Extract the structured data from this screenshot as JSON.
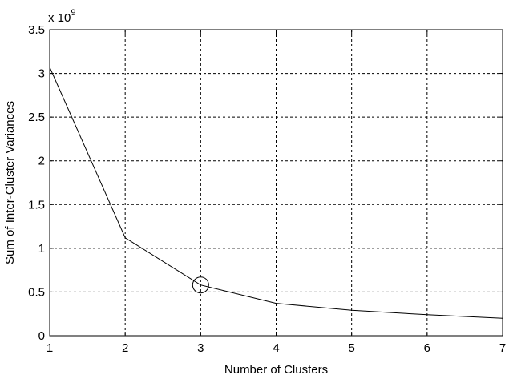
{
  "chart_data": {
    "type": "line",
    "xlabel": "Number of Clusters",
    "ylabel": "Sum of Inter-Cluster Variances",
    "y_multiplier": {
      "base": "x 10",
      "exponent": "9"
    },
    "xlim": [
      1,
      7
    ],
    "ylim": [
      0,
      3.5
    ],
    "x_ticks": [
      1,
      2,
      3,
      4,
      5,
      6,
      7
    ],
    "y_ticks": [
      0,
      0.5,
      1,
      1.5,
      2,
      2.5,
      3,
      3.5
    ],
    "x_tick_labels": [
      "1",
      "2",
      "3",
      "4",
      "5",
      "6",
      "7"
    ],
    "y_tick_labels": [
      "0",
      "0.5",
      "1",
      "1.5",
      "2",
      "2.5",
      "3",
      "3.5"
    ],
    "grid": true,
    "grid_style": "dashed",
    "series": [
      {
        "x": [
          1,
          2,
          3,
          4,
          5,
          6,
          7
        ],
        "y": [
          3.07,
          1.12,
          0.58,
          0.37,
          0.29,
          0.24,
          0.2
        ],
        "color": "#000000"
      }
    ],
    "highlight": {
      "x": 3,
      "y": 0.58,
      "marker": "circle"
    }
  }
}
